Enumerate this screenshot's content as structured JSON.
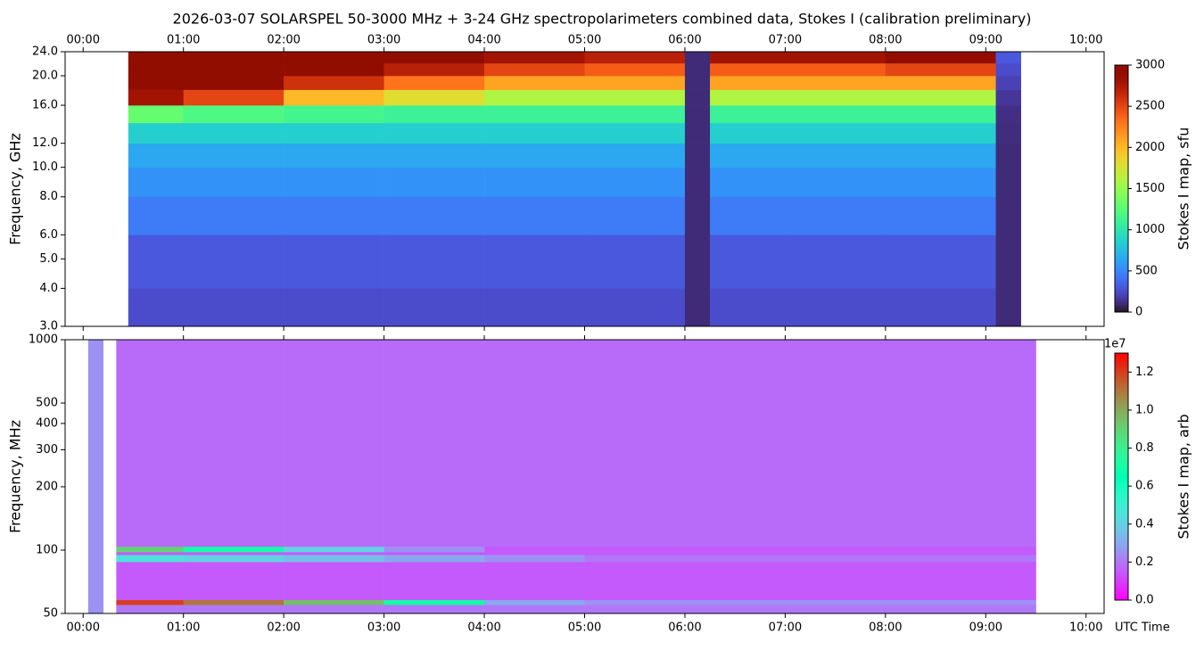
{
  "title": "2026-03-07  SOLARSPEL  50-3000 MHz  +  3-24 GHz  spectropolarimeters combined data,  Stokes I  (calibration preliminary)",
  "x_axis_label": "UTC Time",
  "chart_data": [
    {
      "type": "heatmap",
      "ylabel": "Frequency, GHz",
      "ylog": true,
      "colormap": "turbo",
      "colorbar_label": "Stokes I map, sfu",
      "xlim": [
        -0.18,
        10.18
      ],
      "xticks": [
        {
          "value": 0,
          "label": "00:00"
        },
        {
          "value": 1,
          "label": "01:00"
        },
        {
          "value": 2,
          "label": "02:00"
        },
        {
          "value": 3,
          "label": "03:00"
        },
        {
          "value": 4,
          "label": "04:00"
        },
        {
          "value": 5,
          "label": "05:00"
        },
        {
          "value": 6,
          "label": "06:00"
        },
        {
          "value": 7,
          "label": "07:00"
        },
        {
          "value": 8,
          "label": "08:00"
        },
        {
          "value": 9,
          "label": "09:00"
        },
        {
          "value": 10,
          "label": "10:00"
        }
      ],
      "ylim": [
        3,
        24
      ],
      "yticks": [
        {
          "value": 3,
          "label": "3.0"
        },
        {
          "value": 4,
          "label": "4.0"
        },
        {
          "value": 5,
          "label": "5.0"
        },
        {
          "value": 6,
          "label": "6.0"
        },
        {
          "value": 8,
          "label": "8.0"
        },
        {
          "value": 10,
          "label": "10.0"
        },
        {
          "value": 12,
          "label": "12.0"
        },
        {
          "value": 16,
          "label": "16.0"
        },
        {
          "value": 20,
          "label": "20.0"
        },
        {
          "value": 24,
          "label": "24.0"
        }
      ],
      "x_edges": [
        0.45,
        1,
        2,
        3,
        4,
        5,
        6,
        6.25,
        7,
        8,
        9.1,
        9.35
      ],
      "y_edges": [
        3,
        4,
        6,
        8,
        10,
        12,
        14,
        16,
        18,
        20,
        22,
        24
      ],
      "z": [
        [
          250,
          250,
          250,
          250,
          250,
          250,
          100,
          250,
          250,
          250,
          100
        ],
        [
          300,
          300,
          300,
          300,
          300,
          300,
          100,
          300,
          300,
          300,
          100
        ],
        [
          450,
          450,
          450,
          450,
          450,
          450,
          100,
          450,
          450,
          450,
          100
        ],
        [
          550,
          550,
          550,
          550,
          550,
          550,
          100,
          550,
          550,
          550,
          100
        ],
        [
          650,
          650,
          650,
          650,
          650,
          650,
          100,
          650,
          650,
          650,
          100
        ],
        [
          850,
          850,
          850,
          850,
          850,
          850,
          100,
          850,
          850,
          850,
          110
        ],
        [
          1300,
          1200,
          1150,
          1100,
          1100,
          1100,
          100,
          1100,
          1100,
          1100,
          120
        ],
        [
          2800,
          2500,
          2000,
          1800,
          1600,
          1600,
          100,
          1600,
          1600,
          1600,
          150
        ],
        [
          3000,
          3000,
          2600,
          2300,
          2100,
          2100,
          100,
          2100,
          2100,
          2100,
          200
        ],
        [
          3000,
          3000,
          3000,
          2700,
          2500,
          2400,
          100,
          2400,
          2400,
          2500,
          250
        ],
        [
          3000,
          3000,
          3000,
          3000,
          2800,
          2700,
          100,
          2800,
          2800,
          2900,
          300
        ]
      ],
      "clim": [
        0,
        3000
      ],
      "cticks": [
        0,
        500,
        1000,
        1500,
        2000,
        2500,
        3000
      ]
    },
    {
      "type": "heatmap",
      "ylabel": "Frequency, MHz",
      "ylog": true,
      "colormap": "rainbow",
      "colorbar_label": "Stokes I map, arb",
      "colorbar_offset": "1e7",
      "xlim": [
        -0.18,
        10.18
      ],
      "xticks": [
        {
          "value": 0,
          "label": "00:00"
        },
        {
          "value": 1,
          "label": "01:00"
        },
        {
          "value": 2,
          "label": "02:00"
        },
        {
          "value": 3,
          "label": "03:00"
        },
        {
          "value": 4,
          "label": "04:00"
        },
        {
          "value": 5,
          "label": "05:00"
        },
        {
          "value": 6,
          "label": "06:00"
        },
        {
          "value": 7,
          "label": "07:00"
        },
        {
          "value": 8,
          "label": "08:00"
        },
        {
          "value": 9,
          "label": "09:00"
        },
        {
          "value": 10,
          "label": "10:00"
        }
      ],
      "ylim": [
        50,
        1000
      ],
      "yticks": [
        50,
        100,
        200,
        300,
        400,
        500,
        1000
      ],
      "x_edges": [
        0.05,
        0.2,
        0.33,
        1,
        2,
        3,
        4,
        5,
        6,
        7,
        8,
        9.5
      ],
      "y_edges": [
        50,
        55,
        58,
        88,
        95,
        98,
        104,
        1000
      ],
      "z": [
        [
          2500000,
          null,
          2000000,
          2000000,
          2000000,
          2000000,
          2000000,
          2000000,
          2000000,
          2000000,
          2000000
        ],
        [
          2500000,
          null,
          12000000,
          11000000,
          9500000,
          7000000,
          3000000,
          2500000,
          2500000,
          2500000,
          2500000
        ],
        [
          2500000,
          null,
          1500000,
          1500000,
          1500000,
          1500000,
          1500000,
          1500000,
          1500000,
          1500000,
          1500000
        ],
        [
          2500000,
          null,
          4500000,
          4000000,
          3500000,
          3000000,
          2500000,
          2000000,
          2000000,
          2000000,
          2000000
        ],
        [
          2500000,
          null,
          1500000,
          1500000,
          1500000,
          1500000,
          1500000,
          1500000,
          1500000,
          1500000,
          1500000
        ],
        [
          2500000,
          null,
          9000000,
          7000000,
          4000000,
          2500000,
          1500000,
          1500000,
          1500000,
          1500000,
          1500000
        ],
        [
          2500000,
          null,
          1800000,
          1800000,
          1800000,
          1800000,
          1800000,
          1800000,
          1800000,
          1800000,
          1800000
        ]
      ],
      "clim": [
        0,
        13000000
      ],
      "cticks": [
        {
          "value": 0,
          "label": "0.0"
        },
        {
          "value": 2000000,
          "label": "0.2"
        },
        {
          "value": 4000000,
          "label": "0.4"
        },
        {
          "value": 6000000,
          "label": "0.6"
        },
        {
          "value": 8000000,
          "label": "0.8"
        },
        {
          "value": 10000000,
          "label": "1.0"
        },
        {
          "value": 12000000,
          "label": "1.2"
        }
      ]
    }
  ]
}
